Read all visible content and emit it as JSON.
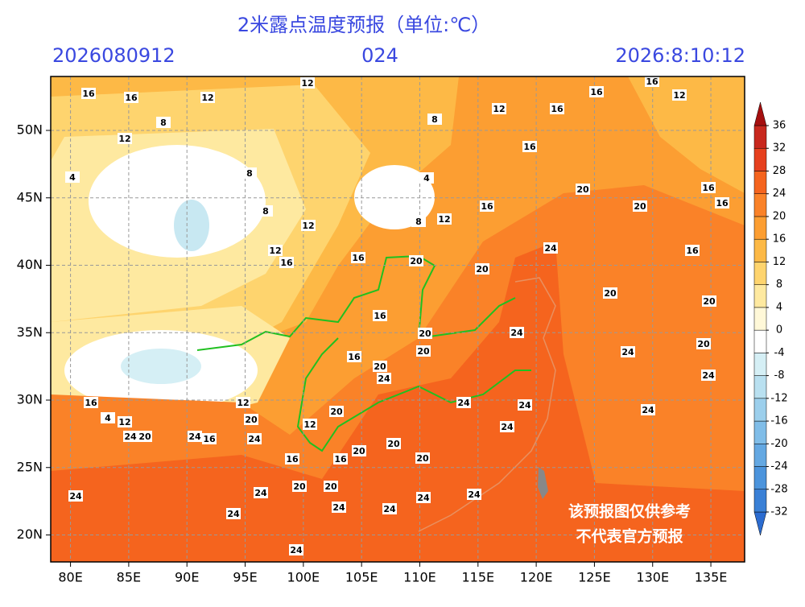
{
  "header": {
    "title": "2米露点温度预报（单位:℃）",
    "init_time": "2026080912",
    "lead_hours": "024",
    "valid_time": "2026:8:10:12"
  },
  "map": {
    "xlim": [
      78.3,
      137.9
    ],
    "ylim": [
      18,
      54
    ],
    "xticks": [
      {
        "value": 80,
        "label": "80E"
      },
      {
        "value": 85,
        "label": "85E"
      },
      {
        "value": 90,
        "label": "90E"
      },
      {
        "value": 95,
        "label": "95E"
      },
      {
        "value": 100,
        "label": "100E"
      },
      {
        "value": 105,
        "label": "105E"
      },
      {
        "value": 110,
        "label": "110E"
      },
      {
        "value": 115,
        "label": "115E"
      },
      {
        "value": 120,
        "label": "120E"
      },
      {
        "value": 125,
        "label": "125E"
      },
      {
        "value": 130,
        "label": "130E"
      },
      {
        "value": 135,
        "label": "135E"
      }
    ],
    "yticks": [
      {
        "value": 20,
        "label": "20N"
      },
      {
        "value": 25,
        "label": "25N"
      },
      {
        "value": 30,
        "label": "30N"
      },
      {
        "value": 35,
        "label": "35N"
      },
      {
        "value": 40,
        "label": "40N"
      },
      {
        "value": 45,
        "label": "45N"
      },
      {
        "value": 50,
        "label": "50N"
      }
    ],
    "grid": true,
    "contour_labels": [
      12,
      16,
      16,
      12,
      16,
      12,
      16,
      16,
      12,
      8,
      12,
      16,
      20,
      16,
      20,
      16,
      16,
      12,
      12,
      12,
      16,
      16,
      20,
      24,
      16,
      20,
      20,
      20,
      16,
      20,
      24,
      20,
      16,
      24,
      20,
      20,
      24,
      24,
      24,
      24,
      24,
      16,
      12,
      4,
      12,
      20,
      12,
      20,
      24,
      24,
      20,
      16,
      24,
      20,
      20,
      16,
      16,
      20,
      24,
      24,
      20,
      20,
      24,
      24,
      24,
      24,
      24,
      24,
      24,
      8,
      8,
      8,
      8,
      4,
      4
    ]
  },
  "colorbar": {
    "ticks": [
      -32,
      -28,
      -24,
      -20,
      -16,
      -12,
      -8,
      -4,
      0,
      4,
      8,
      12,
      16,
      20,
      24,
      28,
      32,
      36
    ],
    "colors": [
      "#2c6cd0",
      "#3a80d6",
      "#4c94dc",
      "#64a8e2",
      "#80bde8",
      "#9ccfec",
      "#b9e0f0",
      "#d5eff5",
      "#ffffff",
      "#fff8d8",
      "#fee9a0",
      "#fed46e",
      "#fdb946",
      "#fc9e32",
      "#fa8228",
      "#f5641e",
      "#e6401e",
      "#c8281e",
      "#a50f0f"
    ]
  },
  "watermark": [
    "该预报图仅供参考",
    "不代表官方预报"
  ]
}
